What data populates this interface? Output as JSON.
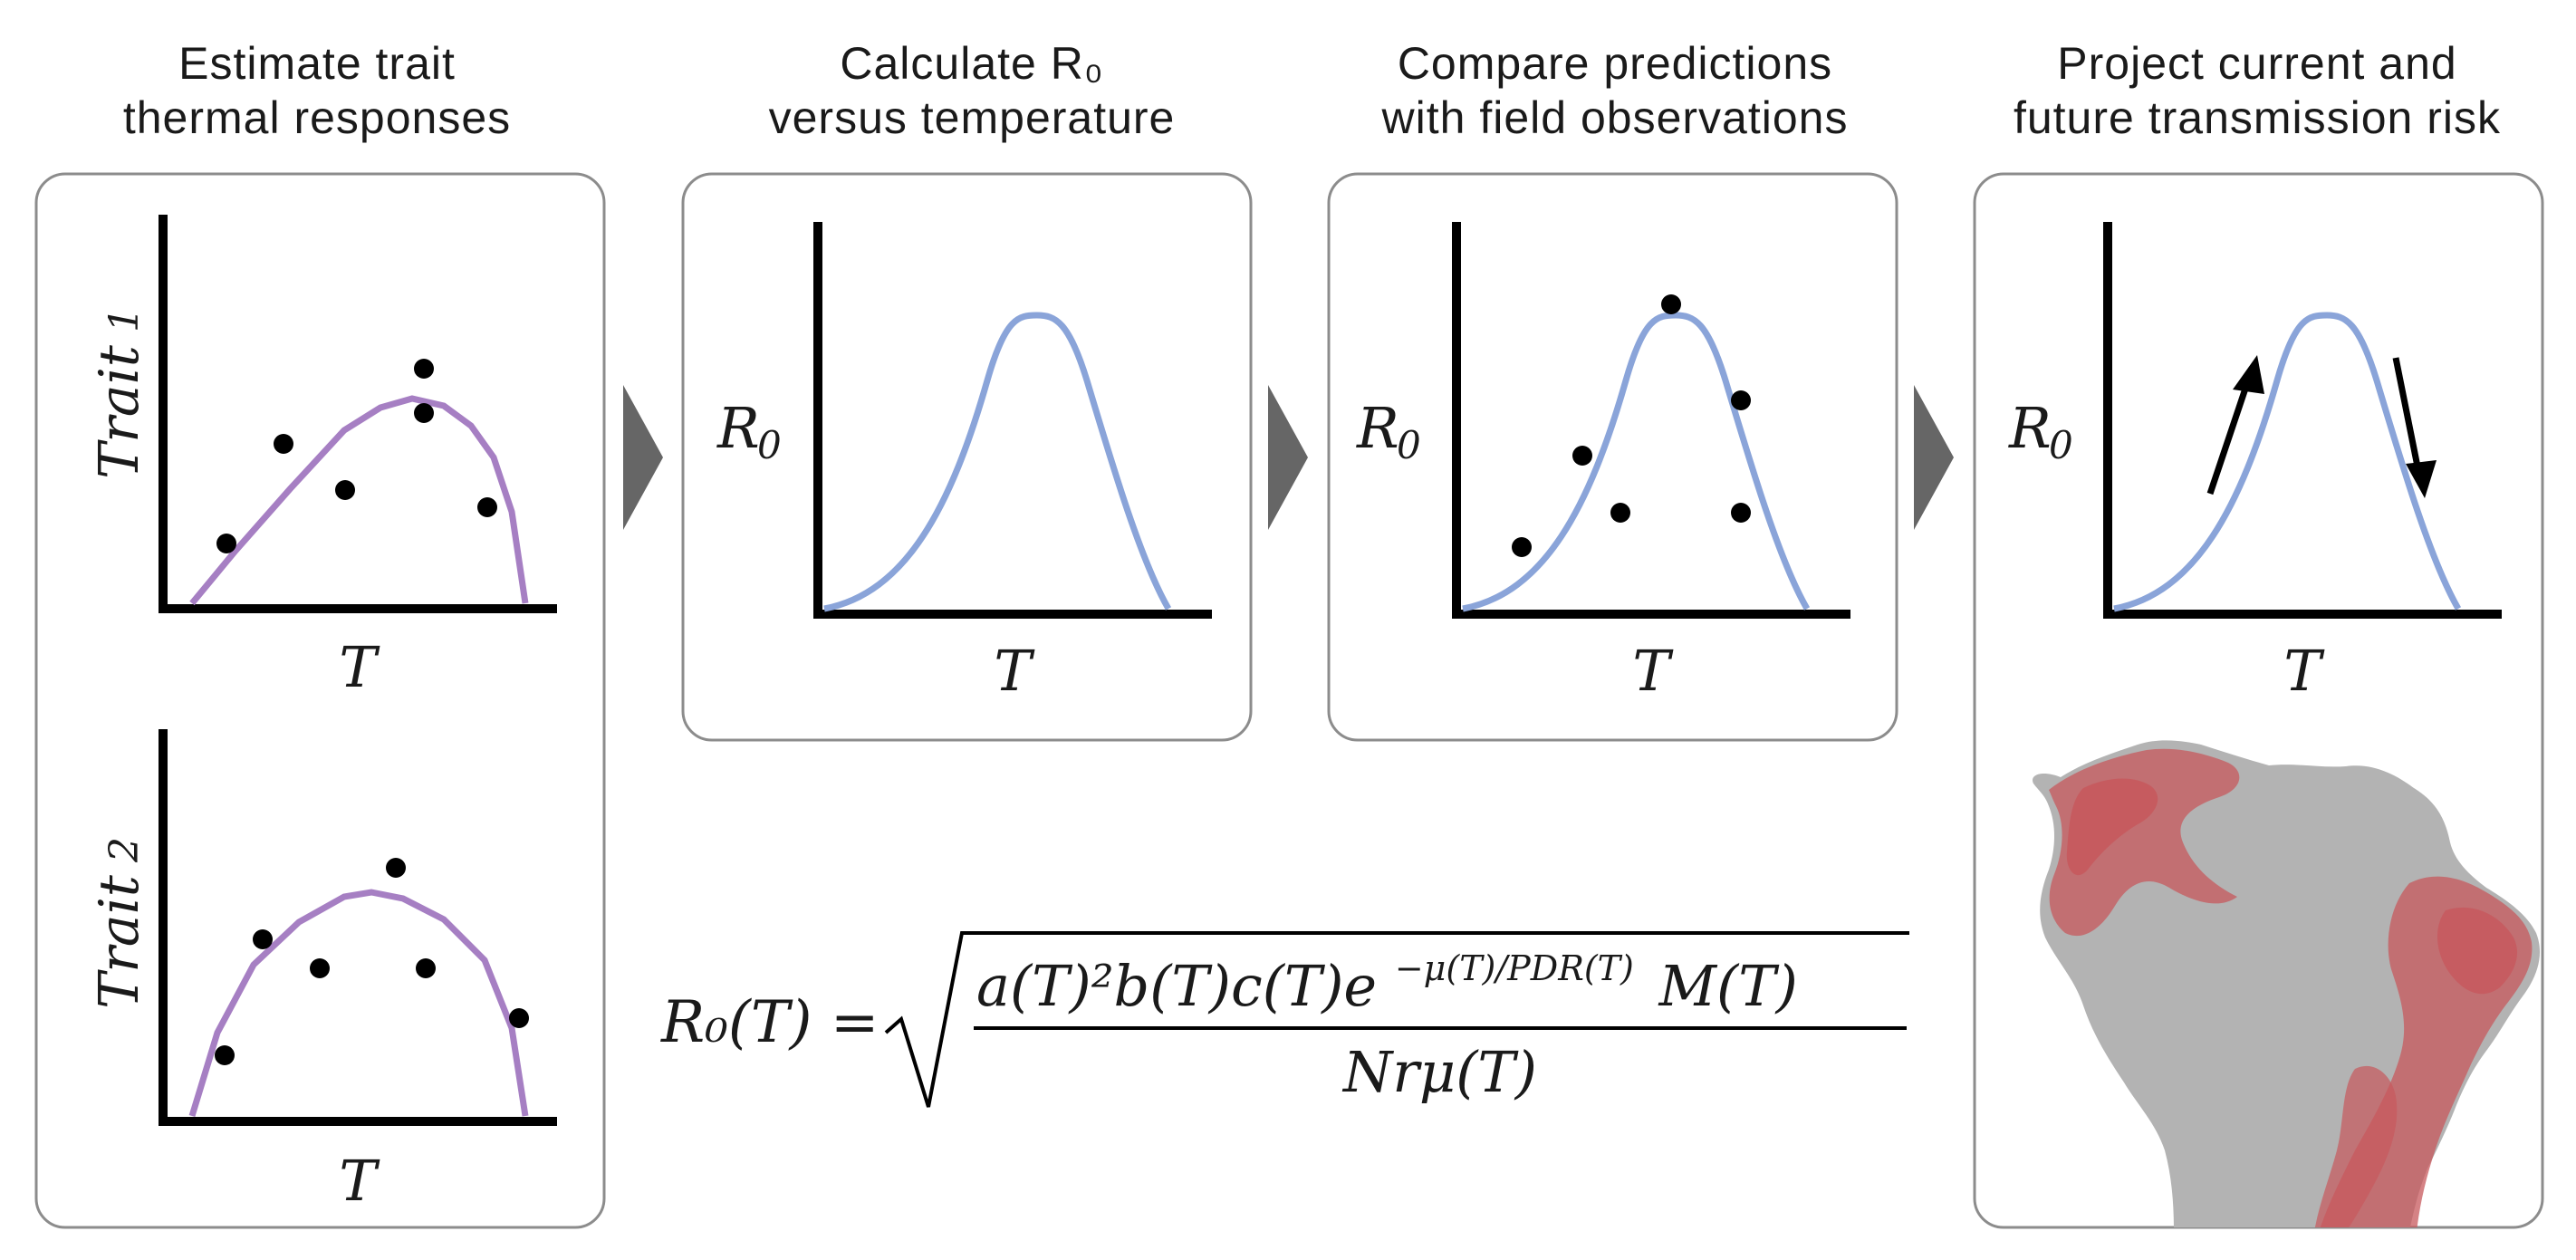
{
  "titles": [
    "Estimate trait\nthermal responses",
    "Calculate R₀\nversus temperature",
    "Compare predictions\nwith field observations",
    "Project current and\nfuture transmission risk"
  ],
  "axis_labels": {
    "x": "T",
    "trait1": "Trait",
    "trait1_sub": "1",
    "trait2": "Trait",
    "trait2_sub": "2",
    "r0": "R",
    "r0_sub": "0"
  },
  "formula": {
    "lhs": "R₀(T) =",
    "numerator": "a(T)²b(T)c(T)e",
    "exponent": "−μ(T)/PDR(T)",
    "numerator_tail": "M(T)",
    "denominator": "Nrμ(T)"
  },
  "colors": {
    "trait_curve": "#a67fc3",
    "r0_curve": "#8aa4d9",
    "arrow": "#666666",
    "map_base": "#b3b3b3",
    "map_risk": "#c7585c"
  }
}
